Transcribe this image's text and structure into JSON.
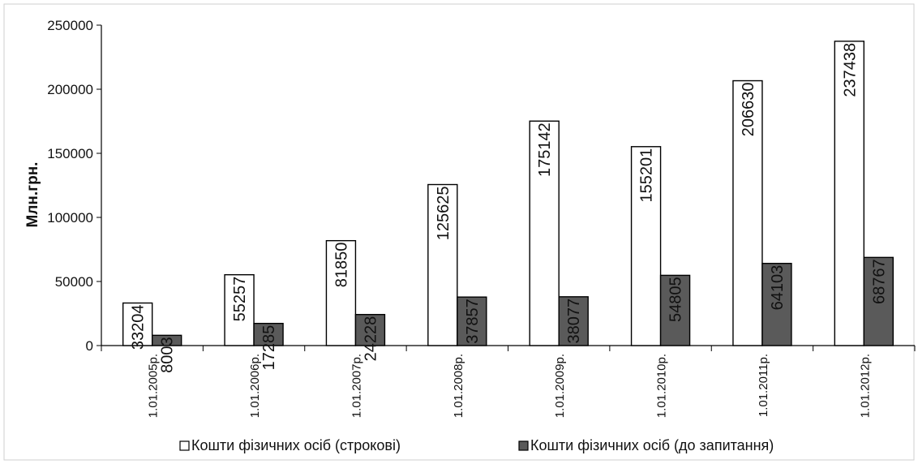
{
  "chart_data": {
    "type": "bar",
    "title": "",
    "xlabel": "",
    "ylabel": "Млн.грн.",
    "ylim": [
      0,
      250000
    ],
    "yticks": [
      0,
      50000,
      100000,
      150000,
      200000,
      250000
    ],
    "grid": false,
    "legend_position": "bottom",
    "categories": [
      "1.01.2005р.",
      "1.01.2006р.",
      "1.01.2007р.",
      "1.01.2008р.",
      "1.01.2009р.",
      "1.01.2010р.",
      "1.01.2011р.",
      "1.01.2012р."
    ],
    "series": [
      {
        "name": "Кошти фізичних осіб (строкові)",
        "color": "#ffffff",
        "values": [
          33204,
          55257,
          81850,
          125625,
          175142,
          155201,
          206630,
          237438
        ]
      },
      {
        "name": "Кошти фізичних осіб (до запитання)",
        "color": "#5a5a5a",
        "values": [
          8003,
          17285,
          24228,
          37857,
          38077,
          54805,
          64103,
          68767
        ]
      }
    ]
  }
}
